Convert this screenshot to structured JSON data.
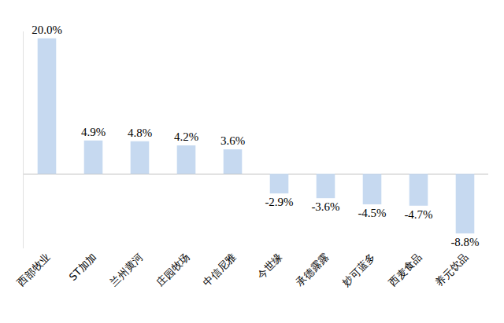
{
  "chart_data": {
    "type": "bar",
    "categories": [
      "西部牧业",
      "ST加加",
      "兰州黄河",
      "庄园牧场",
      "中信尼雅",
      "今世缘",
      "承德露露",
      "妙可蓝多",
      "西麦食品",
      "养元饮品"
    ],
    "values": [
      20.0,
      4.9,
      4.8,
      4.2,
      3.6,
      -2.9,
      -3.6,
      -4.5,
      -4.7,
      -8.8
    ],
    "value_labels": [
      "20.0%",
      "4.9%",
      "4.8%",
      "4.2%",
      "3.6%",
      "-2.9%",
      "-3.6%",
      "-4.5%",
      "-4.7%",
      "-8.8%"
    ],
    "color": "#c6d9f0",
    "ylim": [
      -11,
      21
    ],
    "grid": false,
    "data_labels": true,
    "tick_labels": "x"
  }
}
